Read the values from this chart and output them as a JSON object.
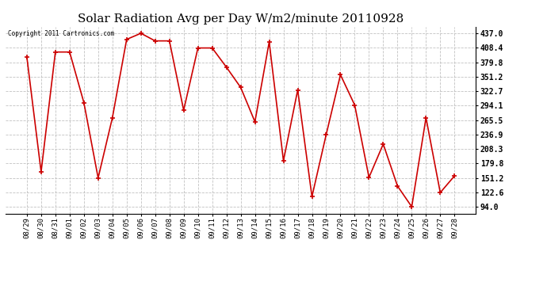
{
  "title": "Solar Radiation Avg per Day W/m2/minute 20110928",
  "copyright": "Copyright 2011 Cartronics.com",
  "labels": [
    "08/29",
    "08/30",
    "08/31",
    "09/01",
    "09/02",
    "09/03",
    "09/04",
    "09/05",
    "09/06",
    "09/07",
    "09/08",
    "09/09",
    "09/10",
    "09/11",
    "09/12",
    "09/13",
    "09/14",
    "09/15",
    "09/16",
    "09/17",
    "09/18",
    "09/19",
    "09/20",
    "09/21",
    "09/22",
    "09/23",
    "09/24",
    "09/25",
    "09/26",
    "09/27",
    "09/28"
  ],
  "values": [
    390,
    163,
    400,
    400,
    300,
    151,
    270,
    425,
    437,
    422,
    422,
    285,
    408,
    408,
    370,
    330,
    262,
    420,
    185,
    325,
    114,
    237,
    355,
    295,
    152,
    218,
    135,
    94,
    270,
    122,
    155
  ],
  "line_color": "#cc0000",
  "marker_color": "#cc0000",
  "bg_color": "#ffffff",
  "plot_bg_color": "#ffffff",
  "grid_color": "#bbbbbb",
  "title_fontsize": 11,
  "yticks": [
    94.0,
    122.6,
    151.2,
    179.8,
    208.3,
    236.9,
    265.5,
    294.1,
    322.7,
    351.2,
    379.8,
    408.4,
    437.0
  ],
  "ylim": [
    80,
    450
  ]
}
